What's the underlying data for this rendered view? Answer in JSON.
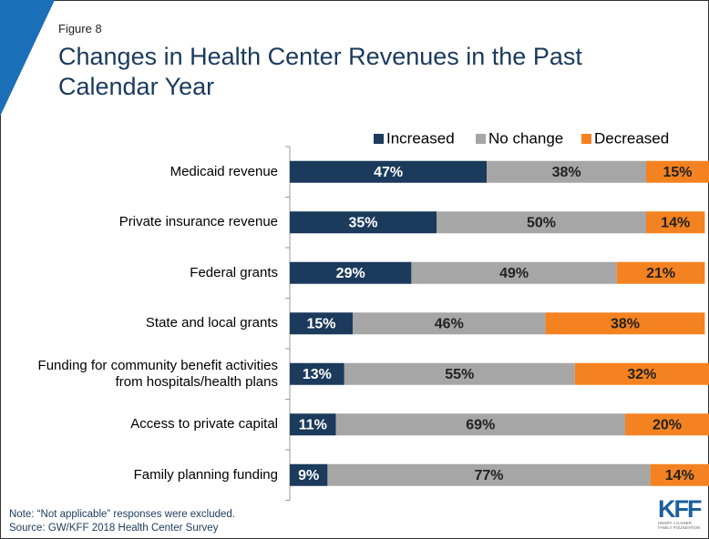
{
  "figure_label": "Figure 8",
  "logo": "KFF",
  "logo_sub": "HENRY J KAISER FAMILY FOUNDATION",
  "chart_data": {
    "type": "stacked-bar-horizontal",
    "title": "Changes in Health Center Revenues in the Past Calendar Year",
    "categories": [
      "Medicaid revenue",
      "Private insurance revenue",
      "Federal grants",
      "State and local grants",
      "Funding for community benefit activities from hospitals/health plans",
      "Access to private capital",
      "Family planning funding"
    ],
    "series": [
      {
        "name": "Increased",
        "color": "#1b3a5c",
        "values": [
          47,
          35,
          29,
          15,
          13,
          11,
          9
        ],
        "value_labels": [
          "47%",
          "35%",
          "29%",
          "15%",
          "13%",
          "11%",
          "9%"
        ]
      },
      {
        "name": "No change",
        "color": "#a6a6a6",
        "values": [
          38,
          50,
          49,
          46,
          55,
          69,
          77
        ],
        "value_labels": [
          "38%",
          "50%",
          "49%",
          "46%",
          "55%",
          "69%",
          "77%"
        ]
      },
      {
        "name": "Decreased",
        "color": "#f58220",
        "values": [
          15,
          14,
          21,
          38,
          32,
          20,
          14
        ],
        "value_labels": [
          "15%",
          "14%",
          "21%",
          "38%",
          "32%",
          "20%",
          "14%"
        ]
      }
    ],
    "xlim": [
      0,
      100
    ],
    "legend": "top-right",
    "notes": [
      "Note: “Not applicable” responses were excluded.",
      "Source: GW/KFF 2018 Health Center Survey"
    ]
  }
}
